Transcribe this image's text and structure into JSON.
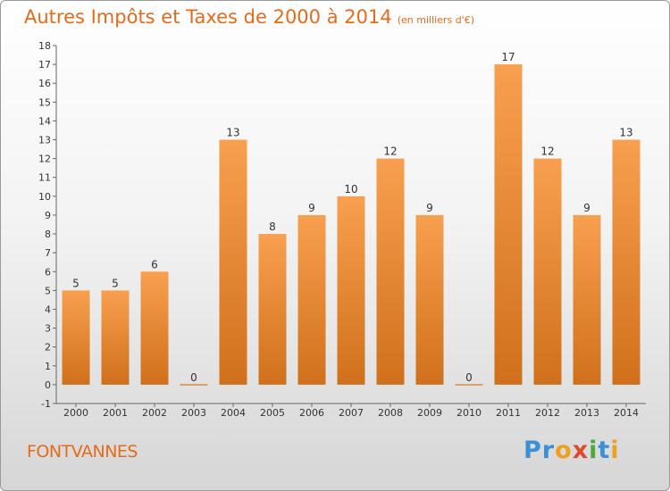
{
  "chart_data": {
    "type": "bar",
    "title": "Autres Impôts et Taxes de 2000 à 2014",
    "subtitle": "(en milliers d'€)",
    "categories": [
      "2000",
      "2001",
      "2002",
      "2003",
      "2004",
      "2005",
      "2006",
      "2007",
      "2008",
      "2009",
      "2010",
      "2011",
      "2012",
      "2013",
      "2014"
    ],
    "values": [
      5,
      5,
      6,
      0,
      13,
      8,
      9,
      10,
      12,
      9,
      0,
      17,
      12,
      9,
      13
    ],
    "ylim": [
      -1,
      18
    ],
    "yticks": [
      -1,
      0,
      1,
      2,
      3,
      4,
      5,
      6,
      7,
      8,
      9,
      10,
      11,
      12,
      13,
      14,
      15,
      16,
      17,
      18
    ],
    "grid": false,
    "colors": {
      "bar": "#f0902c",
      "title": "#e66a1c"
    }
  },
  "town": "FONTVANNES",
  "logo": {
    "text": "Proxiti",
    "letters": [
      {
        "char": "P",
        "color": "#3a8fd6"
      },
      {
        "char": "r",
        "color": "#3a8fd6"
      },
      {
        "char": "o",
        "color": "#f0a020"
      },
      {
        "char": "x",
        "color": "#e04a2a"
      },
      {
        "char": "i",
        "color": "#4aaa3a"
      },
      {
        "char": "t",
        "color": "#3a8fd6"
      },
      {
        "char": "i",
        "color": "#f0a020"
      }
    ]
  }
}
